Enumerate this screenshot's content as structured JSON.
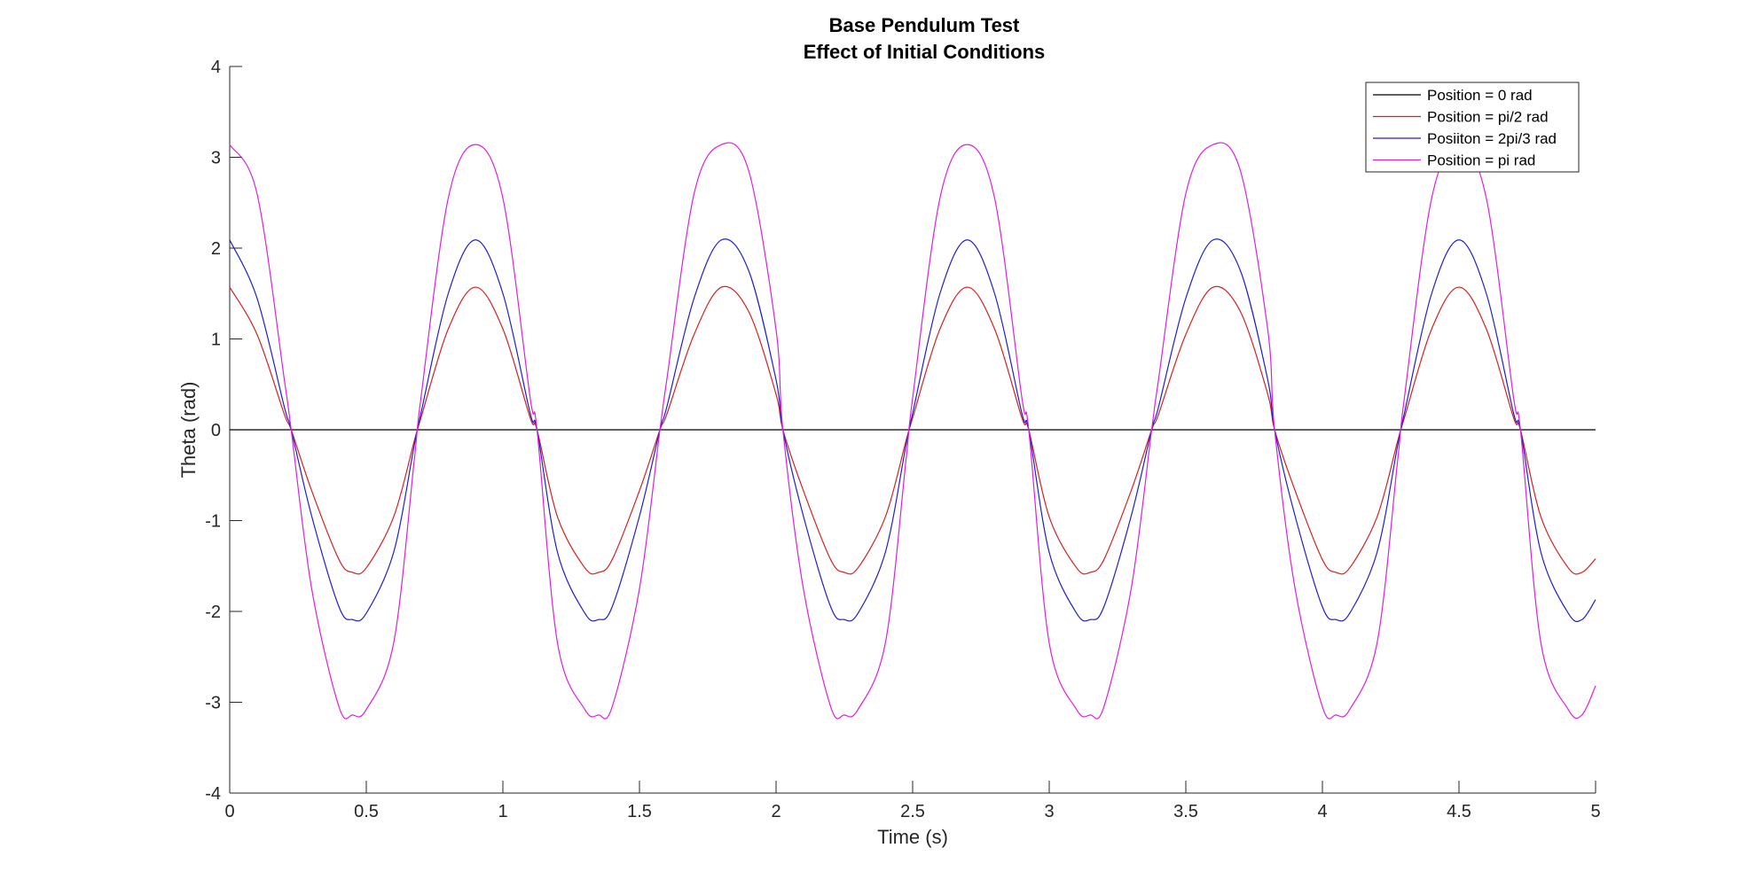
{
  "chart_data": {
    "type": "line",
    "title": "Base Pendulum Test",
    "subtitle": "Effect of Initial Conditions",
    "xlabel": "Time (s)",
    "ylabel": "Theta (rad)",
    "xlim": [
      0,
      5
    ],
    "ylim": [
      -4,
      4
    ],
    "xticks": [
      0,
      0.5,
      1,
      1.5,
      2,
      2.5,
      3,
      3.5,
      4,
      4.5,
      5
    ],
    "xtick_labels": [
      "0",
      "0.5",
      "1",
      "1.5",
      "2",
      "2.5",
      "3",
      "3.5",
      "4",
      "4.5",
      "5"
    ],
    "yticks": [
      -4,
      -3,
      -2,
      -1,
      0,
      1,
      2,
      3,
      4
    ],
    "ytick_labels": [
      "-4",
      "-3",
      "-2",
      "-1",
      "0",
      "1",
      "2",
      "3",
      "4"
    ],
    "grid": false,
    "legend_position": "top-right",
    "x": [
      0,
      0.1,
      0.2,
      0.225,
      0.3,
      0.4,
      0.45,
      0.5,
      0.6,
      0.675,
      0.7,
      0.8,
      0.9,
      1.0,
      1.1,
      1.125,
      1.2,
      1.3,
      1.35,
      1.4,
      1.5,
      1.575,
      1.6,
      1.7,
      1.8,
      1.9,
      2.0,
      2.025,
      2.1,
      2.2,
      2.25,
      2.3,
      2.4,
      2.475,
      2.5,
      2.6,
      2.7,
      2.8,
      2.9,
      2.925,
      3.0,
      3.1,
      3.15,
      3.2,
      3.3,
      3.375,
      3.4,
      3.5,
      3.6,
      3.7,
      3.8,
      3.825,
      3.9,
      4.0,
      4.05,
      4.1,
      4.2,
      4.275,
      4.3,
      4.4,
      4.5,
      4.6,
      4.7,
      4.725,
      4.8,
      4.9,
      4.95,
      5.0
    ],
    "series": [
      {
        "name": "Position = 0 rad",
        "color": "#000000",
        "values": [
          0,
          0,
          0,
          0,
          0,
          0,
          0,
          0,
          0,
          0,
          0,
          0,
          0,
          0,
          0,
          0,
          0,
          0,
          0,
          0,
          0,
          0,
          0,
          0,
          0,
          0,
          0,
          0,
          0,
          0,
          0,
          0,
          0,
          0,
          0,
          0,
          0,
          0,
          0,
          0,
          0,
          0,
          0,
          0,
          0,
          0,
          0,
          0,
          0,
          0,
          0,
          0,
          0,
          0,
          0,
          0,
          0,
          0,
          0,
          0,
          0,
          0,
          0,
          0,
          0,
          0,
          0,
          0
        ]
      },
      {
        "name": "Position = pi/2 rad",
        "color": "#d62020",
        "values": [
          1.57,
          1.05,
          0.17,
          0,
          -0.67,
          -1.43,
          -1.57,
          -1.52,
          -0.96,
          -0.13,
          0.13,
          1.11,
          1.57,
          1.11,
          0.13,
          0,
          -0.96,
          -1.52,
          -1.57,
          -1.43,
          -0.67,
          0,
          0.17,
          1.05,
          1.57,
          1.3,
          0.39,
          0,
          -0.67,
          -1.43,
          -1.57,
          -1.52,
          -0.96,
          -0.13,
          0.13,
          1.11,
          1.57,
          1.11,
          0.13,
          0,
          -0.96,
          -1.52,
          -1.57,
          -1.43,
          -0.67,
          0,
          0.17,
          1.05,
          1.57,
          1.3,
          0.39,
          0,
          -0.67,
          -1.43,
          -1.57,
          -1.52,
          -0.96,
          -0.13,
          0.13,
          1.11,
          1.57,
          1.11,
          0.13,
          0,
          -0.96,
          -1.52,
          -1.57,
          -1.42
        ]
      },
      {
        "name": "Posiiton = 2pi/3 rad",
        "color": "#1f1fd0",
        "values": [
          2.09,
          1.45,
          0.25,
          0,
          -0.95,
          -1.95,
          -2.09,
          -2.02,
          -1.35,
          -0.18,
          0.18,
          1.5,
          2.09,
          1.5,
          0.18,
          0,
          -1.35,
          -2.02,
          -2.09,
          -1.95,
          -0.95,
          0,
          0.25,
          1.45,
          2.09,
          1.75,
          0.55,
          0,
          -0.95,
          -1.95,
          -2.09,
          -2.02,
          -1.35,
          -0.18,
          0.18,
          1.5,
          2.09,
          1.5,
          0.18,
          0,
          -1.35,
          -2.02,
          -2.09,
          -1.95,
          -0.95,
          0,
          0.25,
          1.45,
          2.09,
          1.75,
          0.55,
          0,
          -0.95,
          -1.95,
          -2.09,
          -2.02,
          -1.35,
          -0.18,
          0.18,
          1.5,
          2.09,
          1.5,
          0.18,
          0,
          -1.35,
          -2.02,
          -2.09,
          -1.87
        ]
      },
      {
        "name": "Position = pi rad",
        "color": "#e01ee0",
        "values": [
          3.14,
          2.6,
          0.55,
          0,
          -1.75,
          -3.05,
          -3.14,
          -3.08,
          -2.35,
          -0.35,
          0.35,
          2.55,
          3.14,
          2.55,
          0.35,
          0,
          -2.35,
          -3.08,
          -3.14,
          -3.05,
          -1.75,
          0,
          0.55,
          2.6,
          3.14,
          2.85,
          1.1,
          0,
          -1.75,
          -3.05,
          -3.14,
          -3.08,
          -2.35,
          -0.35,
          0.35,
          2.55,
          3.14,
          2.55,
          0.35,
          0,
          -2.35,
          -3.08,
          -3.14,
          -3.05,
          -1.75,
          0,
          0.55,
          2.6,
          3.14,
          2.85,
          1.1,
          0,
          -1.75,
          -3.05,
          -3.14,
          -3.08,
          -2.35,
          -0.35,
          0.35,
          2.55,
          3.14,
          2.55,
          0.35,
          0,
          -2.35,
          -3.08,
          -3.14,
          -2.82
        ]
      }
    ]
  }
}
